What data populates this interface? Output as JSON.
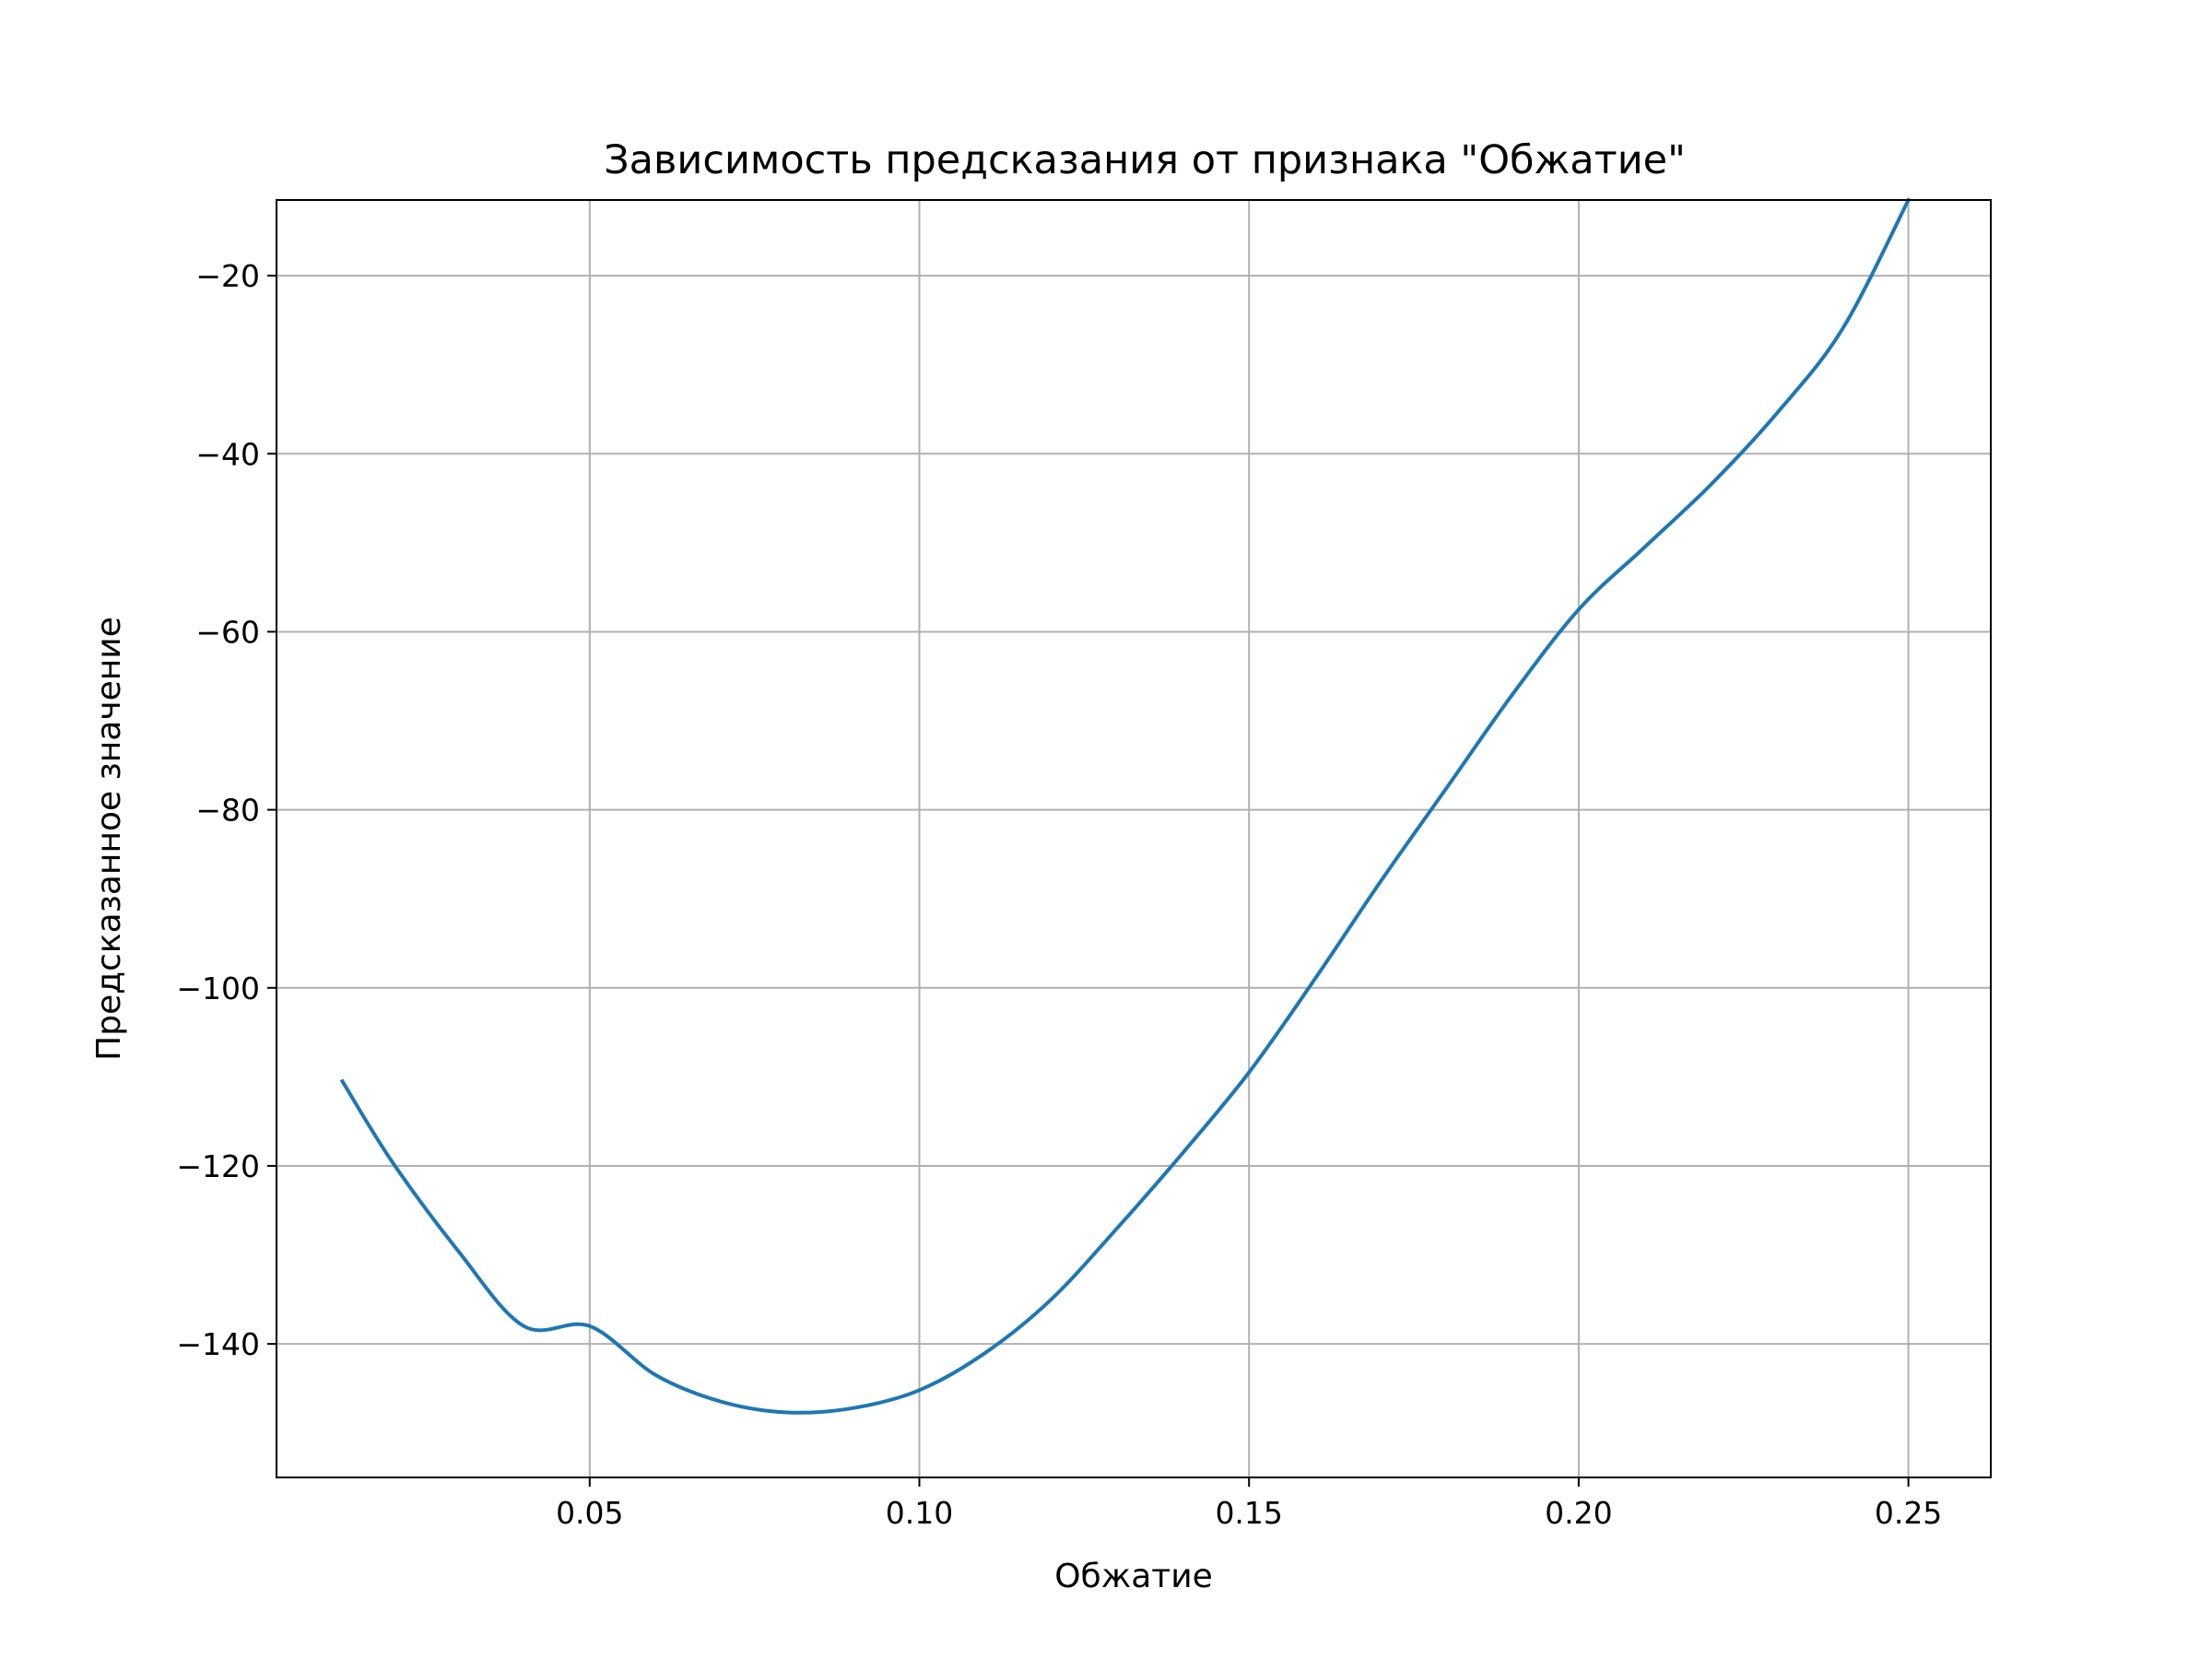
{
  "chart_data": {
    "type": "line",
    "title": "Зависимость предсказания от признака \"Обжатие\"",
    "xlabel": "Обжатие",
    "ylabel": "Предсказанное значение",
    "xlim": [
      0.0025,
      0.2625
    ],
    "ylim": [
      -155,
      -11.5
    ],
    "xticks": [
      0.05,
      0.1,
      0.15,
      0.2,
      0.25
    ],
    "xtick_labels": [
      "0.05",
      "0.10",
      "0.15",
      "0.20",
      "0.25"
    ],
    "yticks": [
      -20,
      -40,
      -60,
      -80,
      -100,
      -120,
      -140
    ],
    "ytick_labels": [
      "−20",
      "−40",
      "−60",
      "−80",
      "−100",
      "−120",
      "−140"
    ],
    "grid": true,
    "series": [
      {
        "color": "#1f77b4",
        "x": [
          0.0125,
          0.02,
          0.03,
          0.04,
          0.05,
          0.06,
          0.07,
          0.08,
          0.09,
          0.1,
          0.11,
          0.12,
          0.13,
          0.14,
          0.15,
          0.16,
          0.17,
          0.18,
          0.19,
          0.2,
          0.21,
          0.22,
          0.23,
          0.24,
          0.25
        ],
        "y": [
          -110.5,
          -119.5,
          -129.5,
          -138.0,
          -138.0,
          -143.5,
          -146.5,
          -147.7,
          -147.2,
          -145.2,
          -141.0,
          -135.0,
          -127.0,
          -118.5,
          -109.5,
          -99.0,
          -88.0,
          -77.5,
          -67.0,
          -57.5,
          -50.5,
          -43.5,
          -35.5,
          -26.0,
          -11.5
        ]
      }
    ]
  }
}
